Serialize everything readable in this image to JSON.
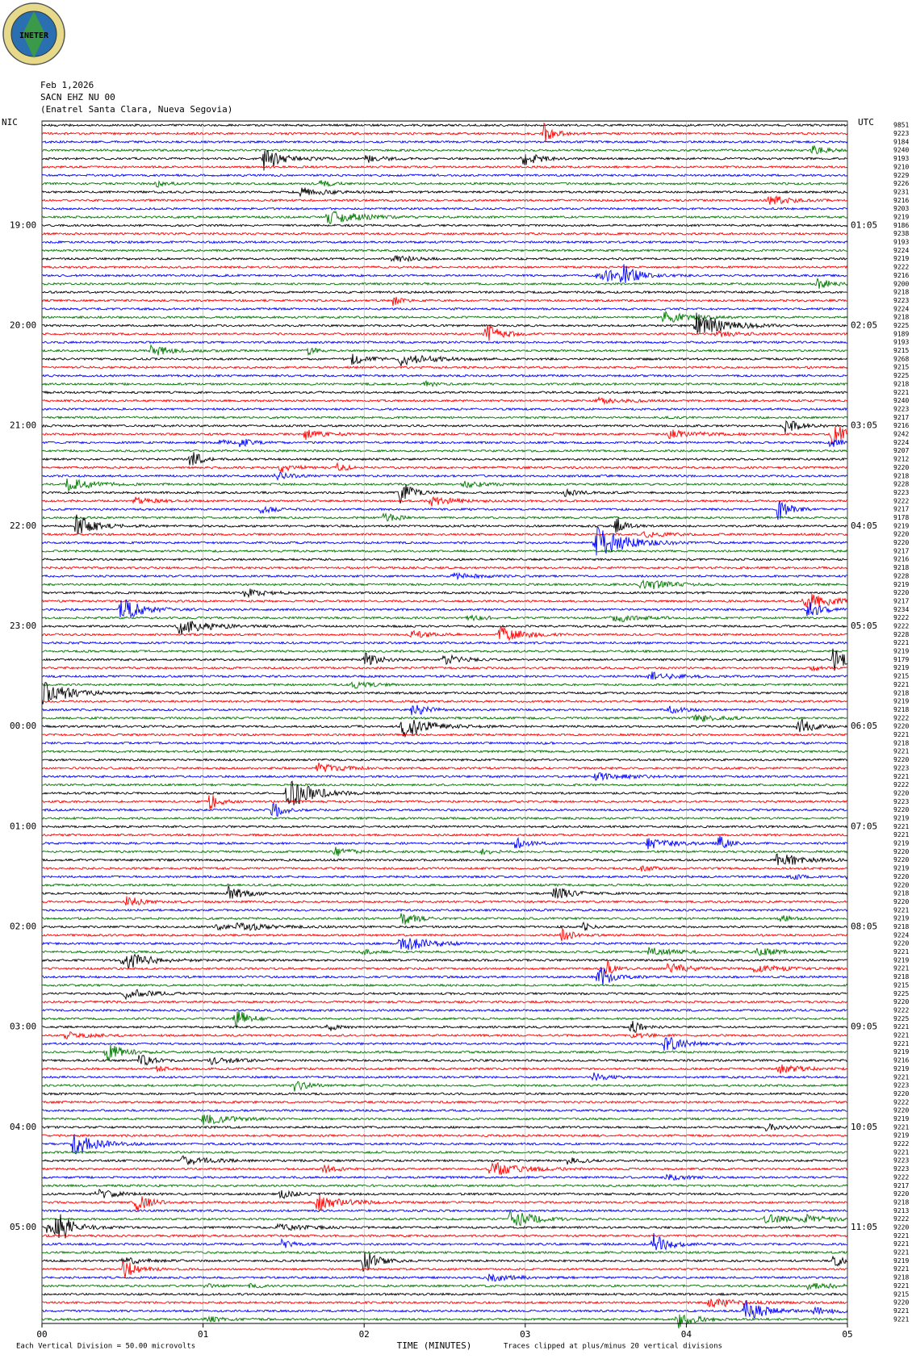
{
  "chart_data": {
    "type": "helicorder",
    "title_lines": [
      "Feb 1,2026",
      "SACN EHZ NU 00",
      "(Enatrel Santa Clara, Nueva Segovia)"
    ],
    "logo_text": "INETER",
    "left_axis_title": "NIC",
    "right_axis_title": "UTC",
    "left_labels": [
      "19:00",
      "20:00",
      "21:00",
      "22:00",
      "23:00",
      "00:00",
      "01:00",
      "02:00",
      "03:00",
      "04:00",
      "05:00"
    ],
    "right_labels": [
      "01:05",
      "02:05",
      "03:05",
      "04:05",
      "05:05",
      "06:05",
      "07:05",
      "08:05",
      "09:05",
      "10:05",
      "11:05"
    ],
    "trace_values": [
      9851,
      9223,
      9184,
      9240,
      9193,
      9210,
      9229,
      9226,
      9231,
      9216,
      9203,
      9219,
      9186,
      9238,
      9193,
      9224,
      9219,
      9222,
      9216,
      9200,
      9218,
      9223,
      9224,
      9218,
      9225,
      9189,
      9193,
      9215,
      9268,
      9215,
      9225,
      9218,
      9221,
      9240,
      9223,
      9217,
      9216,
      9242,
      9224,
      9207,
      9212,
      9220,
      9218,
      9228,
      9223,
      9222,
      9217,
      9178,
      9219,
      9220,
      9220,
      9217,
      9216,
      9218,
      9228,
      9219,
      9220,
      9217,
      9234,
      9222,
      9222,
      9228,
      9221,
      9219,
      9179,
      9219,
      9215,
      9221,
      9218,
      9219,
      9218,
      9222,
      9220,
      9221,
      9218,
      9221,
      9220,
      9223,
      9221,
      9222,
      9220,
      9223,
      9220,
      9219,
      9221,
      9221,
      9219,
      9220,
      9220,
      9219,
      9220,
      9220,
      9218,
      9220,
      9221,
      9219,
      9218,
      9224,
      9220,
      9221,
      9219,
      9221,
      9218,
      9215,
      9225,
      9220,
      9222,
      9225,
      9221,
      9221,
      9221,
      9219,
      9216,
      9219,
      9221,
      9223,
      9220,
      9222,
      9220,
      9219,
      9221,
      9219,
      9222,
      9221,
      9223,
      9223,
      9222,
      9217,
      9220,
      9218,
      9213,
      9222,
      9220,
      9221,
      9221,
      9221,
      9219,
      9221,
      9218,
      9221,
      9215,
      9220,
      9221,
      9221
    ],
    "colors": [
      "#000000",
      "#ff0000",
      "#0000ff",
      "#007700"
    ],
    "xlim": [
      0,
      5
    ],
    "xticks": [
      {
        "value": 0,
        "label": "00"
      },
      {
        "value": 1,
        "label": "01"
      },
      {
        "value": 2,
        "label": "02"
      },
      {
        "value": 3,
        "label": "03"
      },
      {
        "value": 4,
        "label": "04"
      },
      {
        "value": 5,
        "label": "05"
      }
    ],
    "grid": true,
    "xlabel": "TIME (MINUTES)",
    "scale_note": "Each Vertical Division =   50.00 microvolts",
    "clip_note": "Traces clipped at plus/minus 20 vertical divisions"
  }
}
